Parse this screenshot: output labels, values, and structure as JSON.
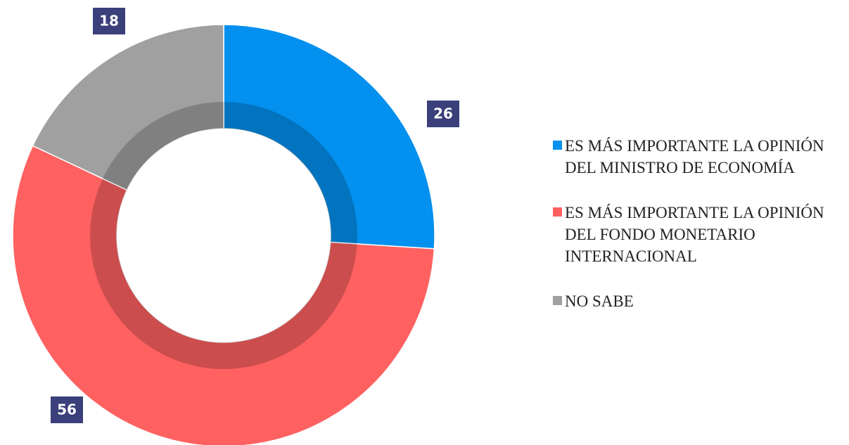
{
  "chart_data": {
    "type": "pie",
    "categories": [
      "ES MÁS IMPORTANTE LA OPINIÓN DEL MINISTRO DE ECONOMÍA",
      "ES MÁS IMPORTANTE LA OPINIÓN DEL FONDO MONETARIO INTERNACIONAL",
      "NO SABE"
    ],
    "values": [
      26,
      56,
      18
    ],
    "colors": [
      "#0390ee",
      "#ff6161",
      "#a0a0a0"
    ],
    "legend": "right"
  }
}
